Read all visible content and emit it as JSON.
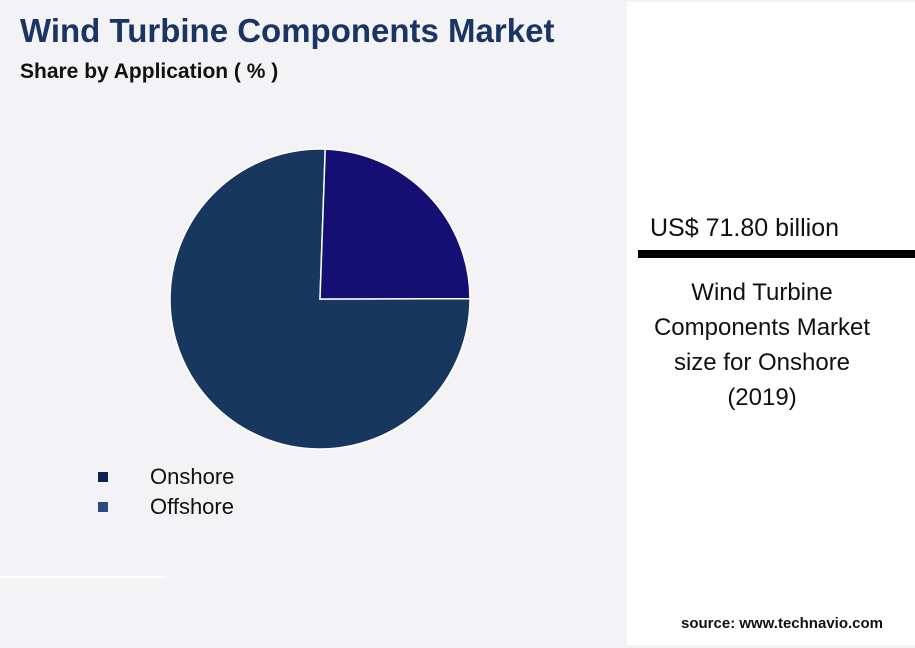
{
  "header": {
    "title": "Wind Turbine Components Market",
    "subtitle": "Share by Application ( % )"
  },
  "chart_data": {
    "type": "pie",
    "categories": [
      "Onshore",
      "Offshore"
    ],
    "values": [
      75.6,
      24.4
    ],
    "colors": [
      "#17375e",
      "#160f73"
    ],
    "legend_colors": [
      "#0f2350",
      "#2f4a80"
    ],
    "start_angle_deg": 2,
    "legend_placement": "bottom-left"
  },
  "panel": {
    "value": "US$ 71.80 billion",
    "description_lines": [
      "Wind Turbine",
      "Components Market",
      "size for Onshore",
      "(2019)"
    ]
  },
  "source": "source: www.technavio.com"
}
